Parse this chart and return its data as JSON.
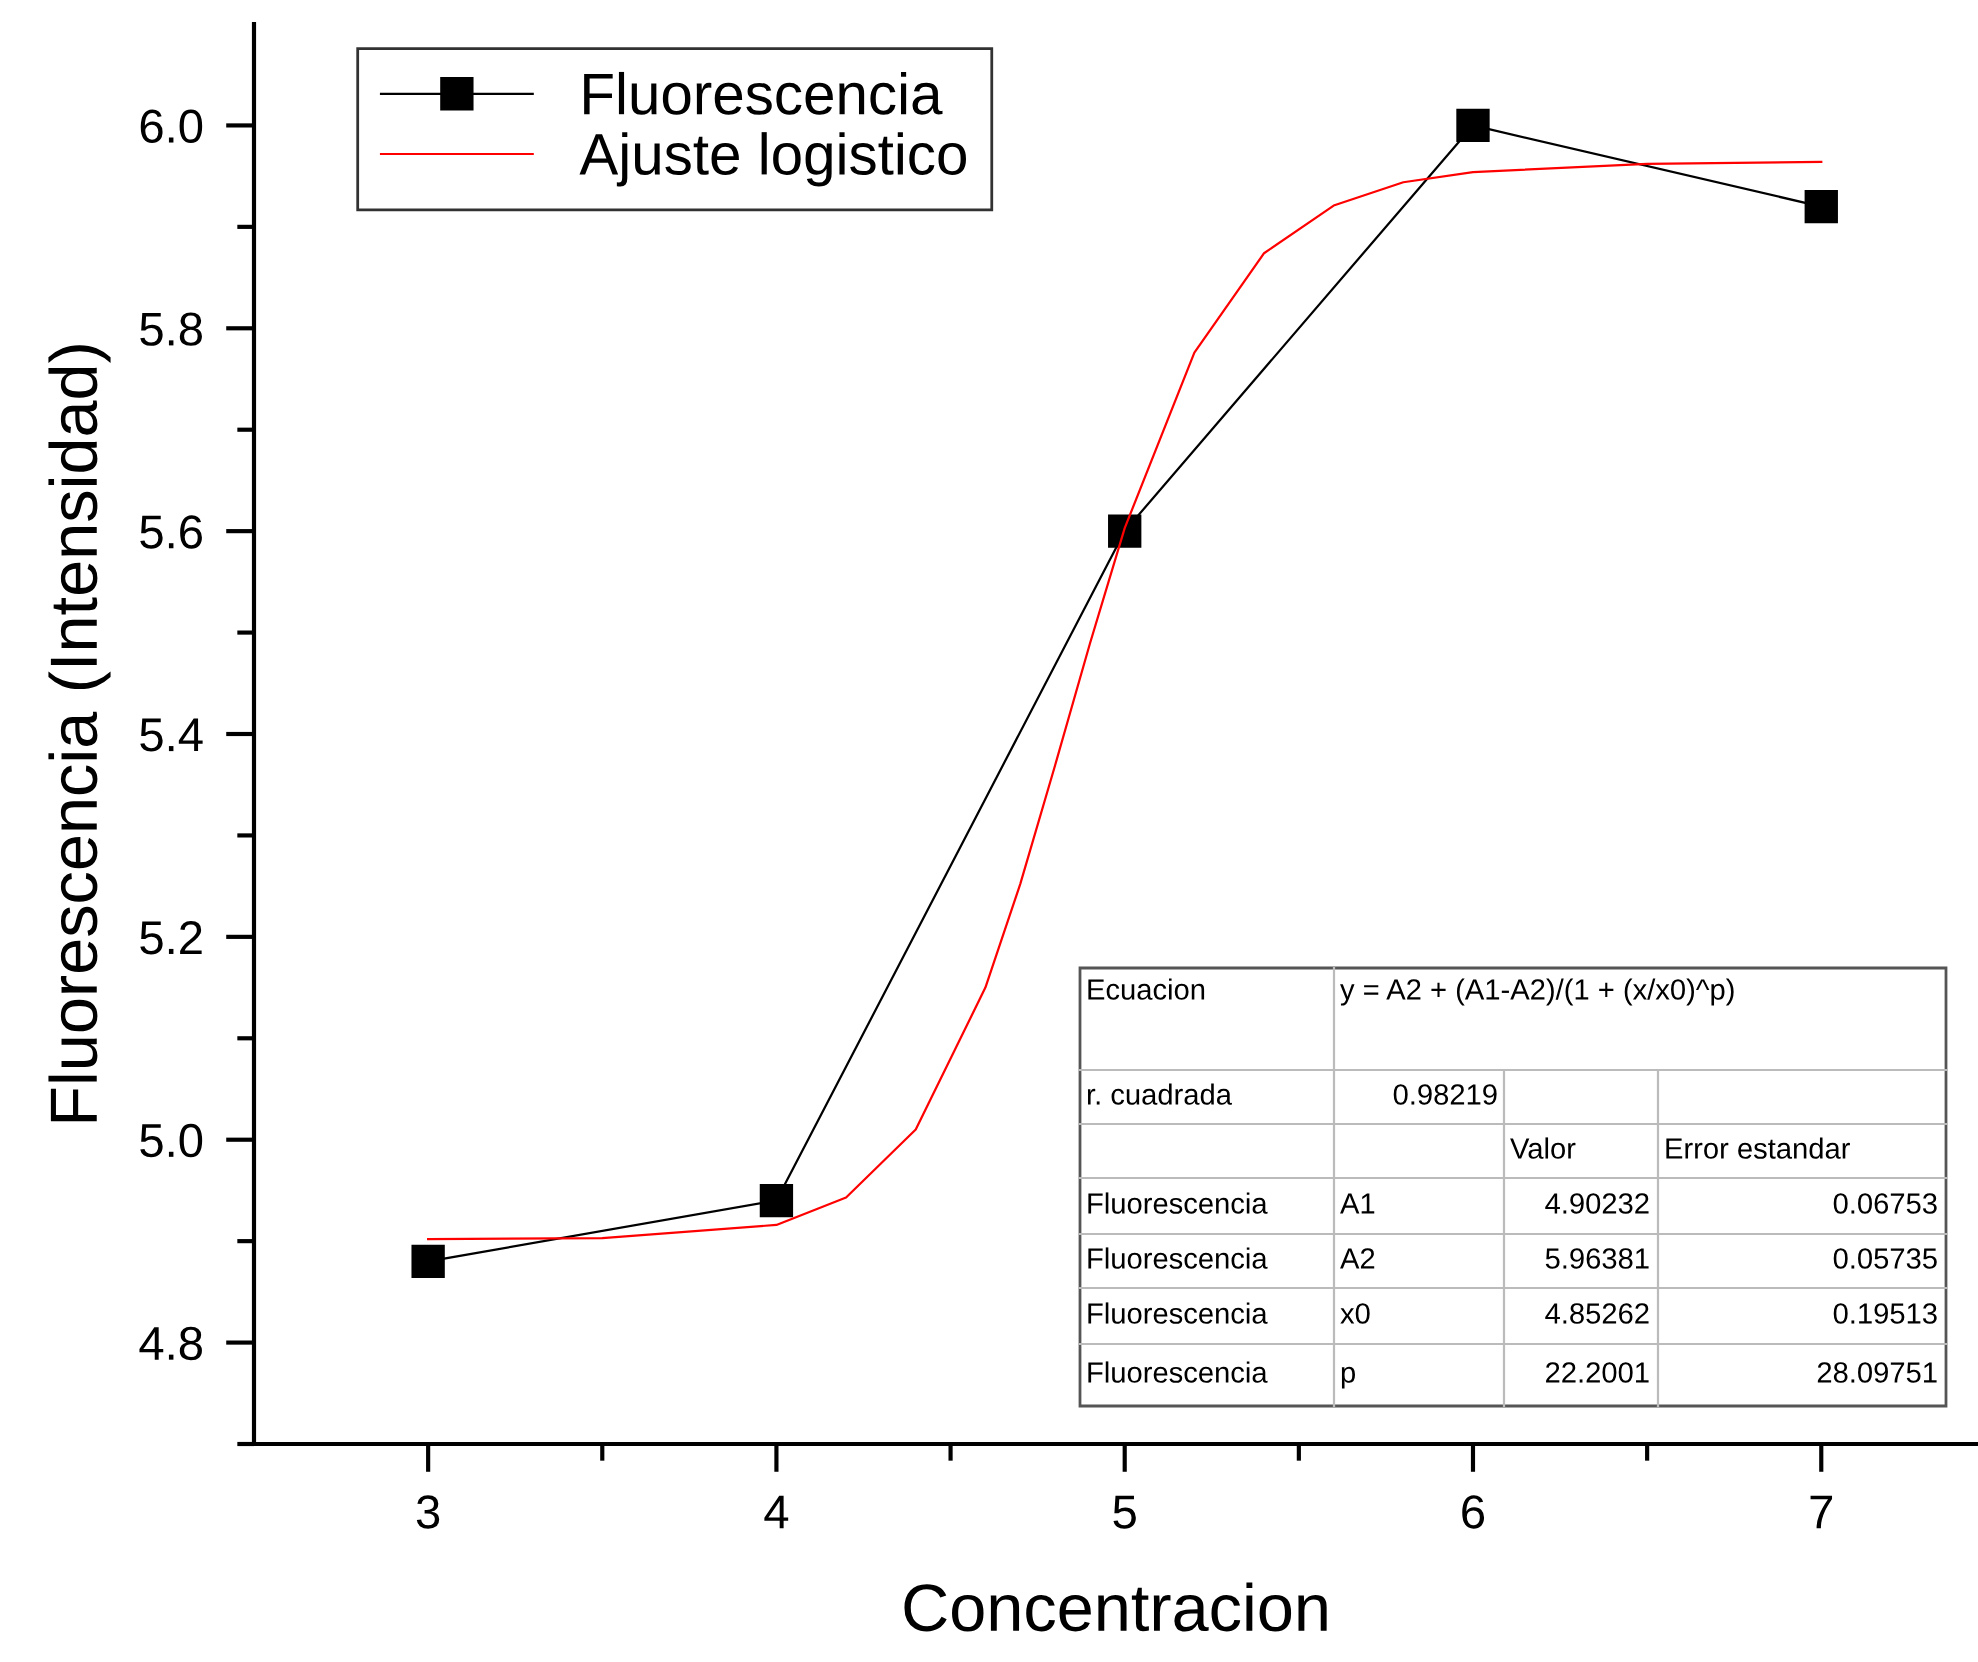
{
  "chart_data": {
    "type": "line",
    "xlabel": "Concentracion",
    "ylabel": "Fluorescencia (Intensidad)",
    "xlim": [
      2.5,
      7.45
    ],
    "ylim": [
      4.7,
      6.1
    ],
    "xticks": [
      3,
      {
        "value": 3.5,
        "label": null
      },
      4,
      {
        "value": 4.5,
        "label": null
      },
      5,
      {
        "value": 5.5,
        "label": null
      },
      6,
      {
        "value": 6.5,
        "label": null
      },
      7
    ],
    "yticks": [
      {
        "value": 4.7,
        "label": null
      },
      {
        "value": 4.8,
        "label": "4.8"
      },
      {
        "value": 4.9,
        "label": null
      },
      {
        "value": 5.0,
        "label": "5.0"
      },
      {
        "value": 5.1,
        "label": null
      },
      {
        "value": 5.2,
        "label": "5.2"
      },
      {
        "value": 5.3,
        "label": null
      },
      {
        "value": 5.4,
        "label": "5.4"
      },
      {
        "value": 5.5,
        "label": null
      },
      {
        "value": 5.6,
        "label": "5.6"
      },
      {
        "value": 5.7,
        "label": null
      },
      {
        "value": 5.8,
        "label": "5.8"
      },
      {
        "value": 5.9,
        "label": null
      },
      {
        "value": 6.0,
        "label": "6.0"
      }
    ],
    "grid": false,
    "legend": "top left",
    "series": [
      {
        "name": "Fluorescencia",
        "color": "#000000",
        "marker": "square",
        "line_style": "solid",
        "x": [
          3,
          4,
          5,
          6,
          7
        ],
        "values": [
          4.88,
          4.94,
          5.6,
          6.0,
          5.92
        ]
      },
      {
        "name": "Ajuste logistico",
        "color": "#ff0000",
        "marker": "none",
        "line_style": "solid",
        "x": [
          3,
          3.5,
          4,
          4.2,
          4.4,
          4.6,
          4.7,
          4.8,
          4.9,
          5.0,
          5.2,
          5.4,
          5.6,
          5.8,
          6.0,
          6.5,
          7
        ],
        "values": [
          4.902,
          4.903,
          4.916,
          4.943,
          5.01,
          5.15,
          5.252,
          5.369,
          5.489,
          5.603,
          5.776,
          5.874,
          5.921,
          5.944,
          5.954,
          5.962,
          5.964
        ]
      }
    ],
    "annotations": [
      "Ecuacion",
      "y = A2 + (A1-A2)/(1 + (x/x0)^p)",
      "r. cuadrada",
      "0.98219",
      "Valor",
      "Error estandar",
      "Fluorescencia",
      "A1",
      "4.90232",
      "0.06753",
      "Fluorescencia",
      "A2",
      "5.96381",
      "0.05735",
      "Fluorescencia",
      "x0",
      "4.85262",
      "0.19513",
      "Fluorescencia",
      "p",
      "22.2001",
      "28.09751"
    ]
  }
}
